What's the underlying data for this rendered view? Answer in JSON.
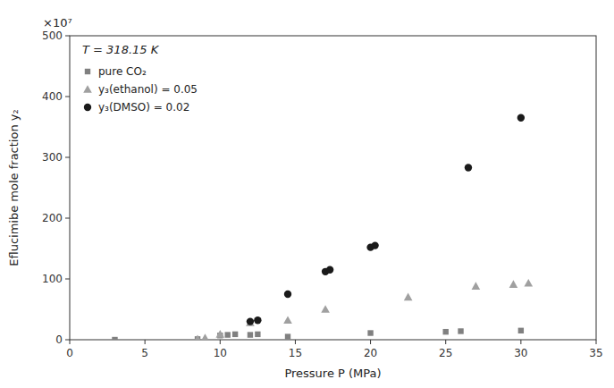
{
  "chart_data": {
    "type": "scatter",
    "xlabel": "Pressure P (MPa)",
    "ylabel": "Eflucimibe mole fraction y₂",
    "annotations": [
      "T = 318.15 K",
      "×10⁷"
    ],
    "series": [
      {
        "name": "pure CO₂",
        "color": "#808080",
        "marker": "square",
        "x": [
          3,
          8.5,
          10,
          10.5,
          11,
          12,
          12.5,
          14.5,
          20,
          25,
          26,
          30
        ],
        "values": [
          0,
          1,
          7,
          8,
          9,
          8,
          9,
          5,
          11,
          13,
          14,
          15
        ]
      },
      {
        "name": "y₃(ethanol) = 0.05",
        "color": "#a0a0a0",
        "marker": "triangle",
        "x": [
          8.5,
          9,
          10,
          12,
          14.5,
          17,
          22.5,
          27,
          29.5,
          30.5
        ],
        "values": [
          1,
          3,
          9,
          28,
          32,
          50,
          70,
          88,
          91,
          93
        ]
      },
      {
        "name": "y₃(DMSO) = 0.02",
        "color": "#1a1a1a",
        "marker": "circle",
        "x": [
          12,
          12.5,
          14.5,
          17,
          17.3,
          20,
          20.3,
          26.5,
          30
        ],
        "values": [
          30,
          32,
          75,
          112,
          115,
          152,
          155,
          283,
          365
        ]
      }
    ],
    "xlim": [
      0,
      35
    ],
    "ylim": [
      0,
      500
    ],
    "xticks": [
      0,
      5,
      10,
      15,
      20,
      25,
      30,
      35
    ],
    "yticks": [
      0,
      100,
      200,
      300,
      400,
      500
    ],
    "grid": false,
    "legend": "upper left"
  }
}
